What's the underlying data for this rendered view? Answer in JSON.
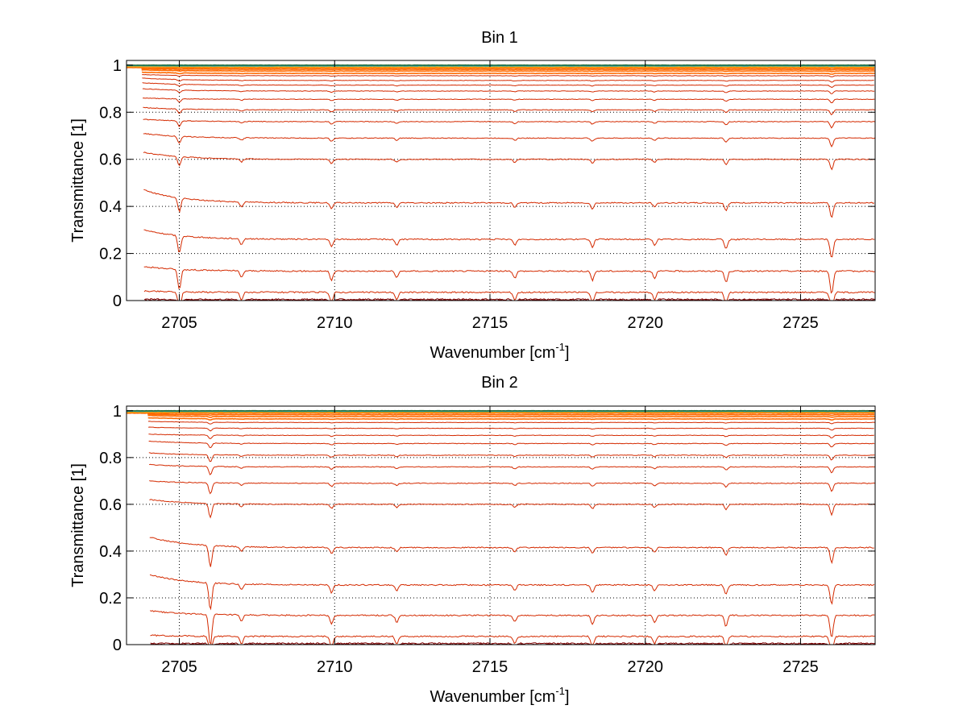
{
  "chart_data": [
    {
      "type": "line",
      "title": "Bin 1",
      "xlabel": "Wavenumber [cm",
      "xlabel_sup": "-1",
      "xlabel_end": "]",
      "ylabel": "Transmittance [1]",
      "xlim": [
        2703.3,
        2727.4
      ],
      "ylim": [
        0,
        1.02
      ],
      "grid": true,
      "xticks": [
        "2705",
        "2710",
        "2715",
        "2720",
        "2725"
      ],
      "yticks": [
        "0",
        "0.2",
        "0.4",
        "0.6",
        "0.8",
        "1"
      ],
      "baselines": [
        0.0,
        0.0,
        0.005,
        0.035,
        0.125,
        0.26,
        0.415,
        0.6,
        0.69,
        0.76,
        0.81,
        0.855,
        0.89,
        0.915,
        0.935,
        0.955,
        0.965,
        0.975,
        0.982,
        0.988,
        0.993,
        0.997,
        1.0
      ],
      "start_values": [
        0.0,
        0.0,
        0.005,
        0.04,
        0.145,
        0.3,
        0.47,
        0.63,
        0.71,
        0.77,
        0.82,
        0.86,
        0.9,
        0.925,
        0.945,
        0.96,
        0.97,
        0.98,
        0.985,
        0.99,
        0.995,
        0.998,
        1.0
      ],
      "absorption_lines": [
        {
          "x": 2705.0,
          "depth": 0.045
        },
        {
          "x": 2707.0,
          "depth": 0.015
        },
        {
          "x": 2709.9,
          "depth": 0.02
        },
        {
          "x": 2712.0,
          "depth": 0.015
        },
        {
          "x": 2715.8,
          "depth": 0.015
        },
        {
          "x": 2718.3,
          "depth": 0.02
        },
        {
          "x": 2720.3,
          "depth": 0.015
        },
        {
          "x": 2722.6,
          "depth": 0.025
        },
        {
          "x": 2726.0,
          "depth": 0.05
        }
      ]
    },
    {
      "type": "line",
      "title": "Bin 2",
      "xlabel": "Wavenumber [cm",
      "xlabel_sup": "-1",
      "xlabel_end": "]",
      "ylabel": "Transmittance [1]",
      "xlim": [
        2703.3,
        2727.4
      ],
      "ylim": [
        0,
        1.02
      ],
      "grid": true,
      "xticks": [
        "2705",
        "2710",
        "2715",
        "2720",
        "2725"
      ],
      "yticks": [
        "0",
        "0.2",
        "0.4",
        "0.6",
        "0.8",
        "1"
      ],
      "baselines": [
        0.0,
        0.0,
        0.005,
        0.035,
        0.125,
        0.255,
        0.415,
        0.6,
        0.69,
        0.76,
        0.81,
        0.86,
        0.895,
        0.925,
        0.95,
        0.965,
        0.975,
        0.983,
        0.99,
        0.995,
        0.998,
        1.0
      ],
      "start_values": [
        0.0,
        0.0,
        0.005,
        0.04,
        0.145,
        0.3,
        0.46,
        0.62,
        0.7,
        0.77,
        0.82,
        0.87,
        0.9,
        0.93,
        0.955,
        0.97,
        0.98,
        0.985,
        0.99,
        0.995,
        0.998,
        1.0
      ],
      "absorption_lines": [
        {
          "x": 2706.0,
          "depth": 0.07
        },
        {
          "x": 2707.0,
          "depth": 0.015
        },
        {
          "x": 2709.9,
          "depth": 0.02
        },
        {
          "x": 2712.0,
          "depth": 0.015
        },
        {
          "x": 2715.8,
          "depth": 0.015
        },
        {
          "x": 2718.3,
          "depth": 0.02
        },
        {
          "x": 2720.3,
          "depth": 0.015
        },
        {
          "x": 2722.6,
          "depth": 0.025
        },
        {
          "x": 2726.0,
          "depth": 0.05
        }
      ]
    }
  ],
  "colors": {
    "dark_red": "#7f0000",
    "red": "#d42a00",
    "orange": "#ff6a00",
    "top_series": [
      "#ffb000",
      "#00a0e0",
      "#2a6f3a",
      "#ff6a00"
    ]
  }
}
